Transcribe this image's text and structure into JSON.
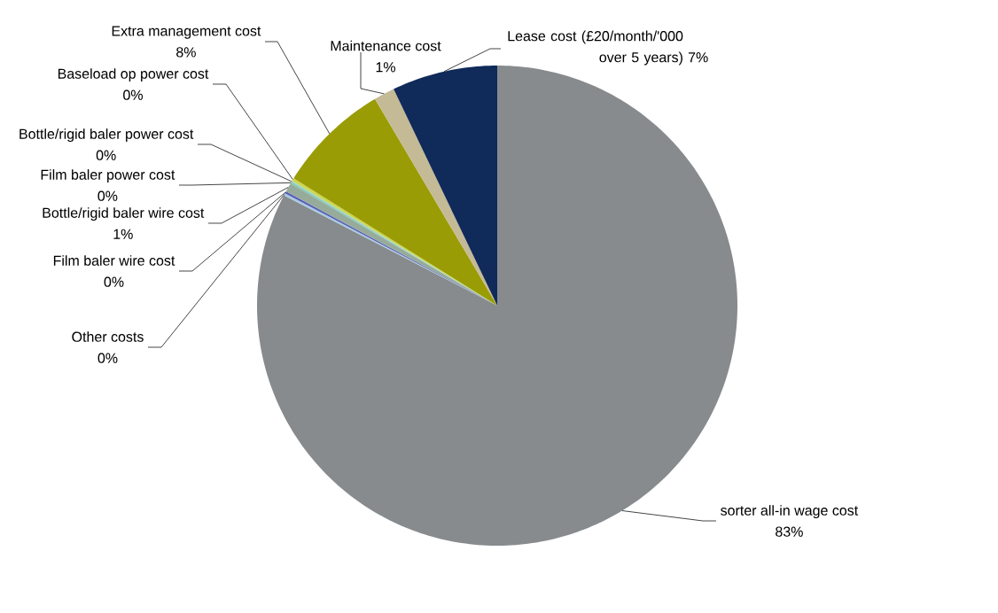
{
  "chart_data": {
    "type": "pie",
    "categories": [
      "sorter all-in wage cost",
      "Other costs",
      "Film baler wire cost",
      "Bottle/rigid baler wire cost",
      "Film baler power cost",
      "Bottle/rigid baler power cost",
      "Baseload op power cost",
      "Extra management cost",
      "Maintenance cost",
      "Lease cost (£20/month/'000 over 5 years)"
    ],
    "values": [
      82.6,
      0.15,
      0.15,
      0.6,
      0.1,
      0.1,
      0.2,
      7.6,
      1.4,
      7.1
    ],
    "value_labels": [
      "83%",
      "0%",
      "0%",
      "1%",
      "0%",
      "0%",
      "0%",
      "8%",
      "1%",
      "7%"
    ],
    "colors": [
      "#878b8d",
      "#a4cbe3",
      "#5b5fb5",
      "#97ab9b",
      "#7cc3b4",
      "#9cd3c0",
      "#cdd64f",
      "#9a9c05",
      "#c5ba96",
      "#102a5a"
    ]
  }
}
